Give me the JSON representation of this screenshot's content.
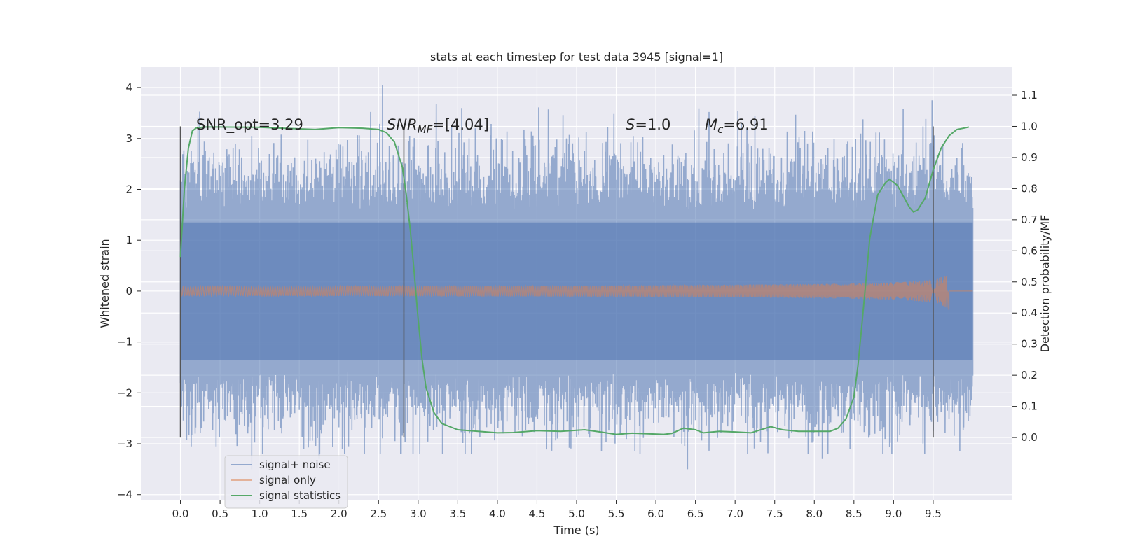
{
  "chart_data": {
    "type": "line",
    "title": "stats at each timestep for test data 3945 [signal=1]",
    "xlabel": "Time (s)",
    "ylabel": "Whitened strain",
    "ylabel_right": "Detection probability/MF",
    "xlim": [
      -0.5,
      10.5
    ],
    "ylim": [
      -4.1,
      4.4
    ],
    "ylim_right": [
      -0.2,
      1.19
    ],
    "x_ticks": [
      0.0,
      0.5,
      1.0,
      1.5,
      2.0,
      2.5,
      3.0,
      3.5,
      4.0,
      4.5,
      5.0,
      5.5,
      6.0,
      6.5,
      7.0,
      7.5,
      8.0,
      8.5,
      9.0,
      9.5
    ],
    "x_tick_labels": [
      "0.0",
      "0.5",
      "1.0",
      "1.5",
      "2.0",
      "2.5",
      "3.0",
      "3.5",
      "4.0",
      "4.5",
      "5.0",
      "5.5",
      "6.0",
      "6.5",
      "7.0",
      "7.5",
      "8.0",
      "8.5",
      "9.0",
      "9.5"
    ],
    "y_ticks": [
      4,
      3,
      2,
      1,
      0,
      -1,
      -2,
      -3,
      -4
    ],
    "y_tick_labels": [
      "4",
      "3",
      "2",
      "1",
      "0",
      "−1",
      "−2",
      "−3",
      "−4"
    ],
    "y_ticks_right": [
      1.1,
      1.0,
      0.9,
      0.8,
      0.7,
      0.6,
      0.5,
      0.4,
      0.3,
      0.2,
      0.1,
      0.0
    ],
    "y_tick_labels_right": [
      "1.1",
      "1.0",
      "0.9",
      "0.8",
      "0.7",
      "0.6",
      "0.5",
      "0.4",
      "0.3",
      "0.2",
      "0.1",
      "0.0"
    ],
    "grid": true,
    "legend_position": "lower-left",
    "annotations": {
      "snr_opt": "SNR_opt=3.29",
      "snr_mf_base": "SNR",
      "snr_mf_sub": "MF",
      "snr_mf_rest": "=[4.04]",
      "s_italic": "S",
      "s_rest": "=1.0",
      "mc_base": "M",
      "mc_sub": "c",
      "mc_rest": "=6.91"
    },
    "vlines_x": [
      0.0,
      2.82,
      9.5
    ],
    "series": [
      {
        "name": "signal+ noise",
        "color": "#4c72b0",
        "kind": "noise",
        "x_range": [
          0.0,
          10.0
        ],
        "envelope": 2.3,
        "peak_min": -3.5,
        "peak_max": 4.05
      },
      {
        "name": "signal only",
        "color": "#dd8452",
        "kind": "chirp",
        "x_range": [
          0.0,
          9.7
        ],
        "peak_amplitude": 0.45
      },
      {
        "name": "signal statistics",
        "color": "#55a868",
        "kind": "line",
        "axis": "right",
        "x": [
          0.0,
          0.05,
          0.1,
          0.15,
          0.2,
          0.3,
          0.5,
          1.0,
          1.5,
          1.7,
          2.0,
          2.3,
          2.5,
          2.6,
          2.7,
          2.8,
          2.85,
          2.9,
          2.95,
          3.0,
          3.05,
          3.1,
          3.2,
          3.3,
          3.5,
          4.0,
          4.2,
          4.5,
          4.8,
          5.1,
          5.3,
          5.5,
          5.7,
          5.9,
          6.1,
          6.2,
          6.35,
          6.5,
          6.6,
          6.8,
          7.0,
          7.2,
          7.45,
          7.6,
          7.8,
          8.0,
          8.2,
          8.3,
          8.4,
          8.5,
          8.55,
          8.6,
          8.65,
          8.7,
          8.8,
          8.9,
          8.95,
          9.05,
          9.2,
          9.25,
          9.3,
          9.4,
          9.5,
          9.6,
          9.7,
          9.8,
          9.9,
          9.95
        ],
        "y": [
          0.58,
          0.8,
          0.93,
          0.985,
          0.995,
          0.998,
          0.998,
          0.997,
          0.992,
          0.99,
          0.996,
          0.994,
          0.99,
          0.98,
          0.95,
          0.87,
          0.78,
          0.67,
          0.53,
          0.38,
          0.25,
          0.16,
          0.08,
          0.045,
          0.025,
          0.015,
          0.016,
          0.022,
          0.02,
          0.025,
          0.018,
          0.01,
          0.014,
          0.012,
          0.01,
          0.013,
          0.03,
          0.025,
          0.015,
          0.02,
          0.018,
          0.015,
          0.035,
          0.025,
          0.02,
          0.02,
          0.02,
          0.03,
          0.06,
          0.13,
          0.23,
          0.36,
          0.5,
          0.64,
          0.78,
          0.82,
          0.83,
          0.81,
          0.74,
          0.725,
          0.73,
          0.77,
          0.86,
          0.93,
          0.97,
          0.99,
          0.995,
          0.998
        ]
      }
    ]
  }
}
